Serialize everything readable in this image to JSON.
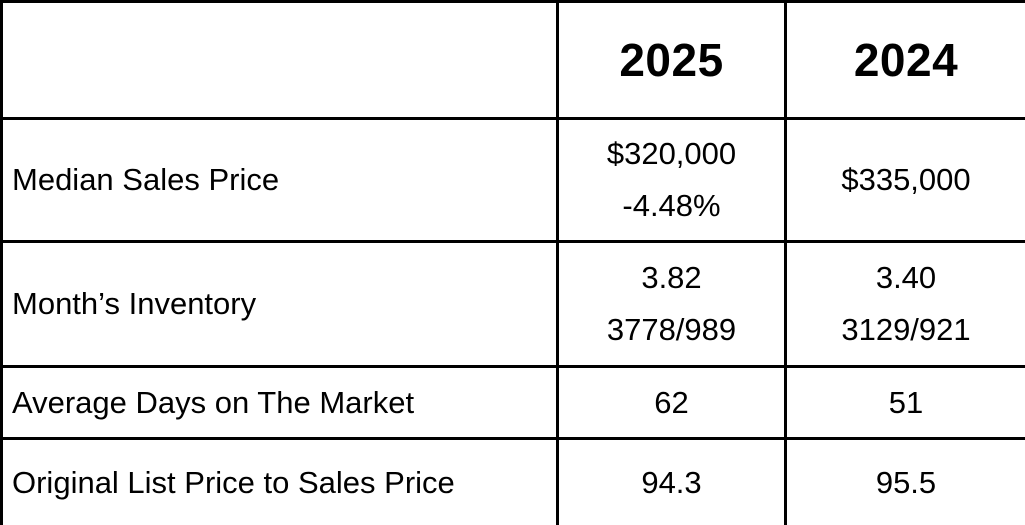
{
  "page": {
    "background_color": "#ffffff",
    "grid_color": "#000000",
    "text_color": "#000000"
  },
  "table": {
    "columns": [
      "",
      "2025",
      "2024"
    ],
    "rows": [
      {
        "label": "Median Sales Price",
        "y2025": [
          "$320,000",
          "-4.48%"
        ],
        "y2024": [
          "$335,000"
        ]
      },
      {
        "label": "Month’s Inventory",
        "y2025": [
          "3.82",
          "3778/989"
        ],
        "y2024": [
          "3.40",
          "3129/921"
        ]
      },
      {
        "label": "Average Days on The Market",
        "y2025": [
          "62"
        ],
        "y2024": [
          "51"
        ]
      },
      {
        "label": "Original List Price to Sales Price",
        "y2025": [
          "94.3"
        ],
        "y2024": [
          "95.5"
        ]
      }
    ]
  },
  "chart_data": {
    "type": "table",
    "title": "",
    "columns": [
      "",
      "2025",
      "2024"
    ],
    "rows": [
      [
        "Median Sales Price",
        "$320,000 -4.48%",
        "$335,000"
      ],
      [
        "Month’s Inventory",
        "3.82 3778/989",
        "3.40 3129/921"
      ],
      [
        "Average Days on The Market",
        "62",
        "51"
      ],
      [
        "Original List Price to Sales Price",
        "94.3",
        "95.5"
      ]
    ],
    "notes": {
      "median_sales_price": {
        "2025": 320000,
        "2025_change_pct": -4.48,
        "2024": 335000
      },
      "months_inventory": {
        "2025": 3.82,
        "2025_ratio": "3778/989",
        "2024": 3.4,
        "2024_ratio": "3129/921"
      },
      "average_days_on_market": {
        "2025": 62,
        "2024": 51
      },
      "original_list_to_sales_price": {
        "2025": 94.3,
        "2024": 95.5
      }
    },
    "layout": {
      "grid": true,
      "header_row_bold": true
    }
  }
}
